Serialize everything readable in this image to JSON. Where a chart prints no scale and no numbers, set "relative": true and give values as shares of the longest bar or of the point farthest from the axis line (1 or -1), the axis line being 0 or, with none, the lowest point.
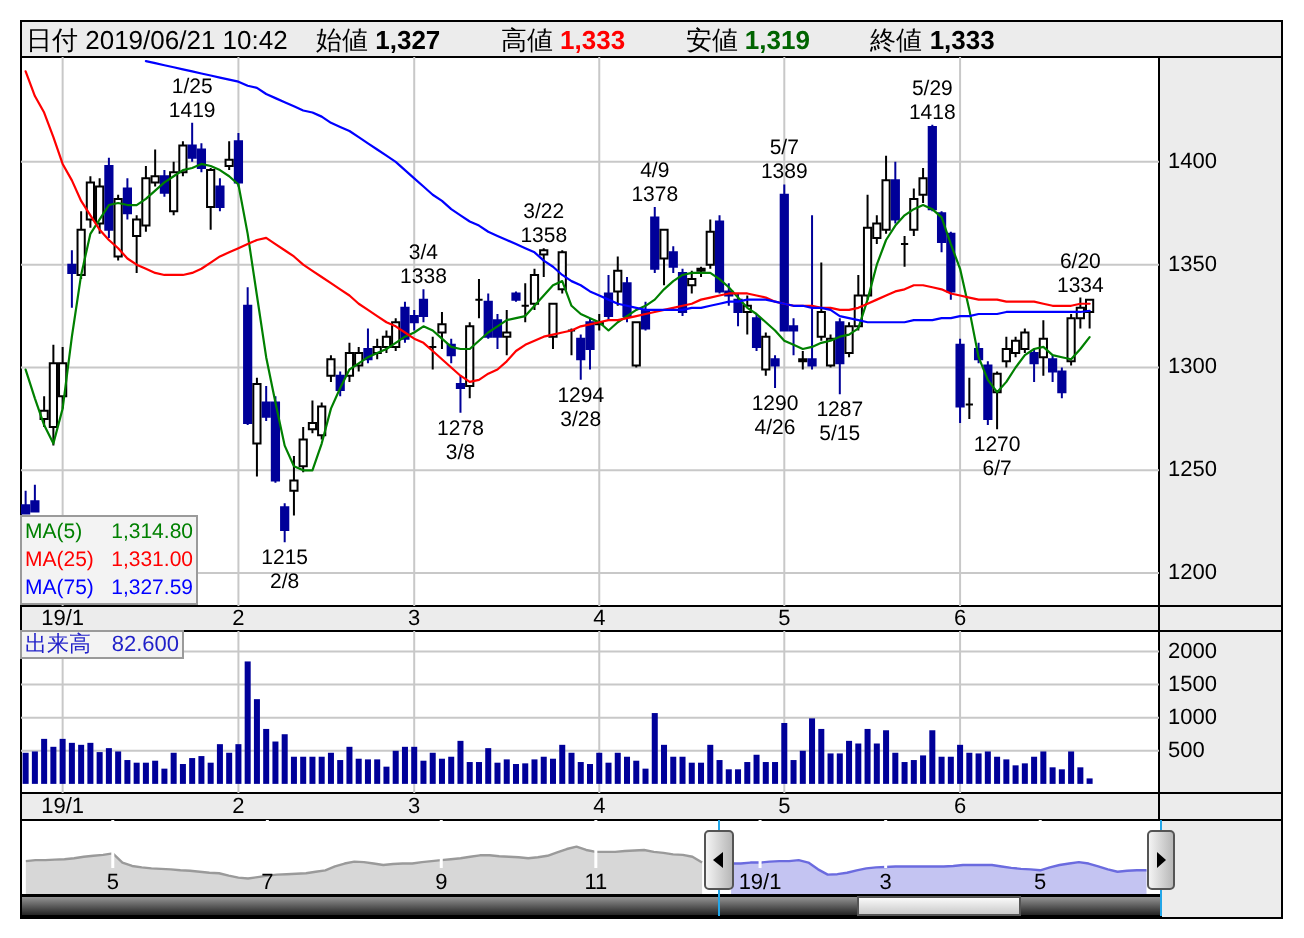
{
  "chart_data": [
    {
      "type": "other",
      "title": "日付 2019/06/21 10:42",
      "annotations": [
        "始値 1,327",
        "高値 1,333",
        "安値 1,319",
        "終値 1,333"
      ]
    },
    {
      "type": "candlestick",
      "categories": [
        null,
        null,
        null,
        null,
        "19/1",
        null,
        null,
        null,
        null,
        null,
        null,
        null,
        null,
        null,
        null,
        null,
        null,
        null,
        null,
        null,
        null,
        null,
        null,
        "2",
        null,
        null,
        null,
        null,
        null,
        null,
        null,
        null,
        null,
        null,
        null,
        null,
        null,
        null,
        null,
        null,
        null,
        null,
        "3",
        null,
        null,
        null,
        null,
        null,
        null,
        null,
        null,
        null,
        null,
        null,
        null,
        null,
        null,
        null,
        null,
        null,
        null,
        null,
        "4",
        null,
        null,
        null,
        null,
        null,
        null,
        null,
        null,
        null,
        null,
        null,
        null,
        null,
        null,
        null,
        null,
        null,
        null,
        null,
        "5",
        null,
        null,
        null,
        null,
        null,
        null,
        null,
        null,
        null,
        null,
        null,
        null,
        null,
        null,
        null,
        null,
        null,
        null,
        "6",
        null,
        null,
        null,
        null,
        null,
        null,
        null,
        null,
        null,
        null,
        null,
        null,
        null,
        null
      ],
      "ohlc": [
        [
          1233,
          1240,
          1229,
          1229
        ],
        [
          1235,
          1243,
          1230,
          1230
        ],
        [
          1275,
          1286,
          1271,
          1279
        ],
        [
          1271,
          1311,
          1262,
          1302
        ],
        [
          1286,
          1310,
          1280,
          1302
        ],
        [
          1350,
          1357,
          1329,
          1346
        ],
        [
          1345,
          1376,
          1343,
          1367
        ],
        [
          1372,
          1393,
          1368,
          1390
        ],
        [
          1370,
          1392,
          1365,
          1388
        ],
        [
          1398,
          1402,
          1363,
          1367
        ],
        [
          1354,
          1384,
          1352,
          1382
        ],
        [
          1387,
          1392,
          1372,
          1375
        ],
        [
          1364,
          1374,
          1346,
          1372
        ],
        [
          1369,
          1398,
          1366,
          1392
        ],
        [
          1390,
          1406,
          1388,
          1393
        ],
        [
          1393,
          1396,
          1383,
          1385
        ],
        [
          1376,
          1400,
          1374,
          1395
        ],
        [
          1395,
          1410,
          1393,
          1408
        ],
        [
          1408,
          1419,
          1400,
          1402
        ],
        [
          1406,
          1409,
          1395,
          1397
        ],
        [
          1378,
          1397,
          1367,
          1396
        ],
        [
          1388,
          1392,
          1376,
          1378
        ],
        [
          1398,
          1410,
          1396,
          1401
        ],
        [
          1410,
          1414,
          1388,
          1390
        ],
        [
          1330,
          1339,
          1272,
          1273
        ],
        [
          1263,
          1295,
          1247,
          1292
        ],
        [
          1283,
          1291,
          1274,
          1276
        ],
        [
          1283,
          1286,
          1244,
          1245
        ],
        [
          1232,
          1234,
          1215,
          1221
        ],
        [
          1240,
          1257,
          1228,
          1245
        ],
        [
          1252,
          1271,
          1249,
          1265
        ],
        [
          1270,
          1284,
          1268,
          1273
        ],
        [
          1267,
          1283,
          1265,
          1281
        ],
        [
          1296,
          1306,
          1293,
          1304
        ],
        [
          1296,
          1298,
          1286,
          1289
        ],
        [
          1296,
          1312,
          1293,
          1307
        ],
        [
          1301,
          1310,
          1298,
          1307
        ],
        [
          1309,
          1319,
          1302,
          1304
        ],
        [
          1307,
          1314,
          1304,
          1310
        ],
        [
          1310,
          1318,
          1307,
          1315
        ],
        [
          1310,
          1324,
          1308,
          1322
        ],
        [
          1329,
          1332,
          1312,
          1314
        ],
        [
          1325,
          1328,
          1318,
          1322
        ],
        [
          1333,
          1338,
          1322,
          1325
        ],
        [
          1310,
          1315,
          1299,
          1310
        ],
        [
          1317,
          1327,
          1309,
          1321
        ],
        [
          1311,
          1314,
          1302,
          1306
        ],
        [
          1292,
          1296,
          1278,
          1290
        ],
        [
          1291,
          1322,
          1285,
          1320
        ],
        [
          1333,
          1343,
          1324,
          1333
        ],
        [
          1332,
          1336,
          1314,
          1315
        ],
        [
          1323,
          1326,
          1309,
          1315
        ],
        [
          1315,
          1328,
          1306,
          1317
        ],
        [
          1336,
          1337,
          1332,
          1333
        ],
        [
          1330,
          1341,
          1322,
          1330
        ],
        [
          1331,
          1348,
          1328,
          1345
        ],
        [
          1355,
          1358,
          1344,
          1357
        ],
        [
          1315,
          1331,
          1309,
          1331
        ],
        [
          1338,
          1357,
          1336,
          1356
        ],
        [
          1318,
          1319,
          1306,
          1318
        ],
        [
          1314,
          1316,
          1294,
          1304
        ],
        [
          1322,
          1324,
          1299,
          1309
        ],
        [
          1321,
          1326,
          1318,
          1322
        ],
        [
          1336,
          1345,
          1323,
          1325
        ],
        [
          1337,
          1354,
          1330,
          1347
        ],
        [
          1341,
          1344,
          1322,
          1325
        ],
        [
          1301,
          1322,
          1300,
          1322
        ],
        [
          1328,
          1332,
          1318,
          1319
        ],
        [
          1373,
          1378,
          1346,
          1348
        ],
        [
          1353,
          1367,
          1340,
          1367
        ],
        [
          1356,
          1359,
          1346,
          1349
        ],
        [
          1346,
          1348,
          1325,
          1327
        ],
        [
          1340,
          1347,
          1336,
          1343
        ],
        [
          1347,
          1349,
          1344,
          1348
        ],
        [
          1350,
          1372,
          1348,
          1366
        ],
        [
          1371,
          1374,
          1336,
          1337
        ],
        [
          1337,
          1341,
          1330,
          1335
        ],
        [
          1333,
          1336,
          1320,
          1327
        ],
        [
          1327,
          1335,
          1316,
          1330
        ],
        [
          1324,
          1326,
          1308,
          1310
        ],
        [
          1299,
          1317,
          1296,
          1315
        ],
        [
          1304,
          1306,
          1290,
          1301
        ],
        [
          1384,
          1389,
          1318,
          1318
        ],
        [
          1320,
          1324,
          1306,
          1318
        ],
        [
          1303,
          1308,
          1299,
          1304
        ],
        [
          1304,
          1374,
          1299,
          1301
        ],
        [
          1315,
          1351,
          1313,
          1327
        ],
        [
          1301,
          1316,
          1300,
          1314
        ],
        [
          1322,
          1324,
          1287,
          1302
        ],
        [
          1307,
          1322,
          1305,
          1320
        ],
        [
          1320,
          1345,
          1318,
          1335
        ],
        [
          1335,
          1384,
          1333,
          1368
        ],
        [
          1363,
          1374,
          1360,
          1370
        ],
        [
          1367,
          1403,
          1365,
          1391
        ],
        [
          1391,
          1400,
          1370,
          1372
        ],
        [
          1360,
          1364,
          1349,
          1360
        ],
        [
          1367,
          1387,
          1364,
          1382
        ],
        [
          1384,
          1397,
          1380,
          1392
        ],
        [
          1417,
          1418,
          1376,
          1377
        ],
        [
          1375,
          1376,
          1356,
          1361
        ],
        [
          1365,
          1366,
          1333,
          1337
        ],
        [
          1311,
          1314,
          1273,
          1281
        ],
        [
          1282,
          1295,
          1275,
          1282
        ],
        [
          1309,
          1312,
          1302,
          1304
        ],
        [
          1301,
          1303,
          1272,
          1275
        ],
        [
          1288,
          1298,
          1270,
          1297
        ],
        [
          1303,
          1315,
          1300,
          1309
        ],
        [
          1307,
          1315,
          1305,
          1313
        ],
        [
          1309,
          1319,
          1307,
          1317
        ],
        [
          1307,
          1309,
          1293,
          1302
        ],
        [
          1305,
          1323,
          1296,
          1314
        ],
        [
          1304,
          1306,
          1293,
          1298
        ],
        [
          1298,
          1300,
          1285,
          1288
        ],
        [
          1303,
          1326,
          1301,
          1324
        ],
        [
          1324,
          1334,
          1319,
          1329
        ],
        [
          1327,
          1333,
          1319,
          1333
        ]
      ],
      "series": [
        {
          "type": "line",
          "name": "MA(5)",
          "color": "#008000",
          "values": [
            1299,
            1285,
            1272,
            1263,
            1280,
            1315,
            1345,
            1365,
            1372,
            1379,
            1380,
            1379,
            1379,
            1382,
            1386,
            1390,
            1393,
            1396,
            1397,
            1399,
            1398,
            1396,
            1393,
            1389,
            1365,
            1335,
            1305,
            1283,
            1262,
            1252,
            1250,
            1250,
            1263,
            1280,
            1290,
            1299,
            1302,
            1305,
            1307,
            1309,
            1312,
            1315,
            1317,
            1320,
            1318,
            1314,
            1310,
            1309,
            1309,
            1313,
            1317,
            1320,
            1323,
            1324,
            1325,
            1330,
            1335,
            1340,
            1342,
            1330,
            1326,
            1324,
            1322,
            1318,
            1322,
            1325,
            1328,
            1330,
            1333,
            1338,
            1342,
            1345,
            1346,
            1346,
            1346,
            1343,
            1339,
            1334,
            1329,
            1326,
            1322,
            1318,
            1313,
            1311,
            1309,
            1310,
            1312,
            1313,
            1315,
            1316,
            1319,
            1333,
            1350,
            1362,
            1369,
            1374,
            1377,
            1379,
            1377,
            1373,
            1360,
            1348,
            1328,
            1305,
            1294,
            1288,
            1293,
            1300,
            1306,
            1309,
            1310,
            1306,
            1305,
            1304,
            1309,
            1314.8
          ]
        },
        {
          "type": "line",
          "name": "MA(25)",
          "color": "#ff0000",
          "values": [
            1444,
            1432,
            1424,
            1412,
            1399,
            1391,
            1381,
            1374,
            1367,
            1362,
            1358,
            1353,
            1350,
            1348,
            1346,
            1345,
            1345,
            1345,
            1346,
            1348,
            1351,
            1354,
            1356,
            1358,
            1360,
            1362,
            1363,
            1360,
            1357,
            1354,
            1350,
            1347,
            1344,
            1341,
            1338,
            1335,
            1331,
            1328,
            1325,
            1322,
            1320,
            1317,
            1314,
            1312,
            1308,
            1304,
            1300,
            1296,
            1293,
            1294,
            1297,
            1299,
            1303,
            1308,
            1311,
            1313,
            1315,
            1316,
            1317,
            1318,
            1320,
            1321,
            1322,
            1323,
            1323,
            1324,
            1325,
            1326,
            1327,
            1328,
            1329,
            1330,
            1331,
            1333,
            1334,
            1335,
            1336,
            1336,
            1336,
            1335,
            1334,
            1332,
            1331,
            1330,
            1330,
            1330,
            1329,
            1329,
            1328,
            1328,
            1329,
            1331,
            1333,
            1335,
            1337,
            1338,
            1340,
            1340,
            1339,
            1338,
            1336,
            1335,
            1334,
            1333,
            1333,
            1333,
            1332,
            1332,
            1332,
            1332,
            1331,
            1330,
            1330,
            1330,
            1331,
            1331
          ]
        },
        {
          "type": "line",
          "name": "MA(75)",
          "color": "#0000ff",
          "values": [
            null,
            null,
            null,
            null,
            null,
            null,
            null,
            null,
            null,
            null,
            null,
            null,
            null,
            1449,
            1448,
            1447,
            1446,
            1445,
            1444,
            1443,
            1442,
            1441,
            1440,
            1439,
            1437,
            1436,
            1433,
            1431,
            1429,
            1427,
            1425,
            1424,
            1422,
            1419,
            1417,
            1415,
            1412,
            1409,
            1406,
            1403,
            1400,
            1396,
            1392,
            1388,
            1384,
            1381,
            1377,
            1374,
            1371,
            1369,
            1366,
            1364,
            1362,
            1360,
            1358,
            1356,
            1352,
            1349,
            1345,
            1342,
            1340,
            1337,
            1335,
            1333,
            1331,
            1330,
            1329,
            1328,
            1328,
            1328,
            1328,
            1328,
            1329,
            1329,
            1330,
            1331,
            1332,
            1332,
            1333,
            1333,
            1333,
            1332,
            1331,
            1330,
            1330,
            1329,
            1329,
            1328,
            1325,
            1324,
            1323,
            1322,
            1322,
            1322,
            1322,
            1322,
            1323,
            1323,
            1323,
            1324,
            1324,
            1325,
            1325,
            1326,
            1326,
            1326,
            1327,
            1327,
            1327,
            1327,
            1327,
            1327,
            1327,
            1327,
            1327,
            1327.59
          ]
        }
      ],
      "ylim": [
        1184,
        1451
      ],
      "yticks": [
        1200,
        1250,
        1300,
        1350,
        1400
      ],
      "grid": true,
      "legend": "bottom left",
      "annotations": [
        "1,314.80",
        "1,331.00",
        "1,327.59",
        {
          "text": "1/25\n1419",
          "y": 1419
        },
        {
          "text": "1215\n2/8",
          "y": 1215
        },
        {
          "text": "3/4\n1338",
          "y": 1338
        },
        {
          "text": "1278\n3/8",
          "y": 1278
        },
        {
          "text": "3/22\n1358",
          "y": 1358
        },
        {
          "text": "1294\n3/28",
          "y": 1294
        },
        {
          "text": "4/9\n1378",
          "y": 1378
        },
        {
          "text": "1290\n4/26",
          "y": 1290
        },
        {
          "text": "5/7\n1389",
          "y": 1389
        },
        {
          "text": "1287\n5/15",
          "y": 1287
        },
        {
          "text": "5/29\n1418",
          "y": 1418
        },
        {
          "text": "1270\n6/7",
          "y": 1270
        },
        {
          "text": "6/20\n1334",
          "y": 1334
        }
      ]
    },
    {
      "type": "bar",
      "title": "出来高",
      "categories": [
        null,
        null,
        null,
        null,
        "19/1",
        null,
        null,
        null,
        null,
        null,
        null,
        null,
        null,
        null,
        null,
        null,
        null,
        null,
        null,
        null,
        null,
        null,
        null,
        "2",
        null,
        null,
        null,
        null,
        null,
        null,
        null,
        null,
        null,
        null,
        null,
        null,
        null,
        null,
        null,
        null,
        null,
        null,
        "3",
        null,
        null,
        null,
        null,
        null,
        null,
        null,
        null,
        null,
        null,
        null,
        null,
        null,
        null,
        null,
        null,
        null,
        null,
        null,
        "4",
        null,
        null,
        null,
        null,
        null,
        null,
        null,
        null,
        null,
        null,
        null,
        null,
        null,
        null,
        null,
        null,
        null,
        null,
        null,
        "5",
        null,
        null,
        null,
        null,
        null,
        null,
        null,
        null,
        null,
        null,
        null,
        null,
        null,
        null,
        null,
        null,
        null,
        null,
        "6",
        null,
        null,
        null,
        null,
        null,
        null,
        null,
        null,
        null,
        null,
        null,
        null,
        null,
        null
      ],
      "series": [
        {
          "color": "#000099",
          "values": [
            470,
            490,
            680,
            560,
            680,
            620,
            590,
            620,
            480,
            540,
            490,
            360,
            320,
            320,
            350,
            230,
            470,
            300,
            390,
            420,
            320,
            600,
            470,
            600,
            1850,
            1280,
            830,
            640,
            750,
            410,
            410,
            410,
            410,
            470,
            360,
            560,
            380,
            370,
            370,
            260,
            500,
            560,
            560,
            350,
            470,
            380,
            410,
            650,
            330,
            330,
            540,
            320,
            370,
            300,
            310,
            370,
            410,
            380,
            590,
            470,
            330,
            300,
            470,
            320,
            470,
            410,
            350,
            230,
            1070,
            590,
            410,
            410,
            320,
            320,
            590,
            360,
            220,
            220,
            330,
            440,
            330,
            330,
            920,
            360,
            500,
            990,
            830,
            460,
            460,
            650,
            610,
            830,
            610,
            810,
            470,
            330,
            360,
            430,
            810,
            410,
            410,
            590,
            470,
            460,
            490,
            410,
            370,
            280,
            310,
            410,
            490,
            250,
            220,
            490,
            250,
            82.6
          ]
        }
      ],
      "ylim": [
        -138,
        2310
      ],
      "yticks": [
        500,
        1000,
        1500,
        2000
      ],
      "grid": true,
      "annotations": [
        "82.600"
      ]
    },
    {
      "type": "area",
      "relative": true,
      "tick_labels": "x",
      "categories": [
        null,
        null,
        null,
        null,
        null,
        null,
        null,
        null,
        null,
        "5",
        null,
        null,
        null,
        null,
        null,
        null,
        null,
        null,
        null,
        null,
        null,
        null,
        null,
        null,
        null,
        "7",
        null,
        null,
        null,
        null,
        null,
        null,
        null,
        null,
        null,
        null,
        null,
        null,
        null,
        null,
        null,
        null,
        null,
        "9",
        null,
        null,
        null,
        null,
        null,
        null,
        null,
        null,
        null,
        null,
        null,
        null,
        null,
        null,
        null,
        "11",
        null,
        null,
        null,
        null,
        null,
        null,
        null,
        null,
        null,
        null,
        null,
        null,
        null,
        null,
        null,
        null,
        "19/1",
        null,
        null,
        null,
        null,
        null,
        null,
        null,
        null,
        null,
        null,
        null,
        null,
        "3",
        null,
        null,
        null,
        null,
        null,
        null,
        null,
        null,
        null,
        null,
        null,
        null,
        null,
        null,
        null,
        "5",
        null,
        null,
        null,
        null,
        null,
        null,
        null,
        null,
        null,
        null,
        null
      ],
      "series": [
        {
          "color": "#9a9a9a",
          "values": [
            0.7,
            0.72,
            0.72,
            0.73,
            0.74,
            0.76,
            0.79,
            0.81,
            0.83,
            0.86,
            0.67,
            0.6,
            0.57,
            0.55,
            0.54,
            0.53,
            0.51,
            0.5,
            0.48,
            0.46,
            0.45,
            0.4,
            0.36,
            0.34,
            0.37,
            0.4,
            0.42,
            0.43,
            0.44,
            0.45,
            0.48,
            0.51,
            0.59,
            0.65,
            0.69,
            0.68,
            0.65,
            0.62,
            0.64,
            0.65,
            0.65,
            0.68,
            0.7,
            0.72,
            0.74,
            0.76,
            0.79,
            0.82,
            0.82,
            0.8,
            0.79,
            0.78,
            0.76,
            0.78,
            0.81,
            0.88,
            0.95,
            1,
            0.93,
            0.89,
            0.89,
            0.89,
            0.91,
            0.92,
            0.93,
            0.89,
            0.87,
            0.84,
            0.83,
            0.79,
            0.67,
            null,
            null,
            null,
            null,
            null,
            null,
            null,
            null,
            null,
            null,
            null,
            null,
            null,
            null,
            null,
            null,
            null,
            null,
            null,
            null,
            null,
            null,
            null,
            null,
            null,
            null,
            null,
            null,
            null,
            null,
            null,
            null,
            null,
            null,
            null,
            null,
            null,
            null,
            null,
            null,
            null,
            null,
            null,
            null,
            null,
            null
          ]
        },
        {
          "color": "#6b6bdf",
          "values": [
            null,
            null,
            null,
            null,
            null,
            null,
            null,
            null,
            null,
            null,
            null,
            null,
            null,
            null,
            null,
            null,
            null,
            null,
            null,
            null,
            null,
            null,
            null,
            null,
            null,
            null,
            null,
            null,
            null,
            null,
            null,
            null,
            null,
            null,
            null,
            null,
            null,
            null,
            null,
            null,
            null,
            null,
            null,
            null,
            null,
            null,
            null,
            null,
            null,
            null,
            null,
            null,
            null,
            null,
            null,
            null,
            null,
            null,
            null,
            null,
            null,
            null,
            null,
            null,
            null,
            null,
            null,
            null,
            null,
            null,
            null,
            null,
            null,
            0.65,
            0.65,
            0.67,
            0.67,
            0.69,
            0.7,
            0.7,
            0.72,
            0.67,
            0.53,
            0.42,
            0.43,
            0.46,
            0.51,
            0.55,
            0.57,
            0.58,
            0.59,
            0.59,
            0.59,
            0.59,
            0.59,
            0.59,
            0.6,
            0.62,
            0.62,
            0.62,
            0.62,
            0.59,
            0.56,
            0.54,
            0.53,
            0.51,
            0.57,
            0.62,
            0.65,
            0.68,
            0.65,
            0.59,
            0.53,
            0.48,
            0.5,
            0.51,
            0.51
          ]
        }
      ],
      "grid": "x"
    }
  ]
}
